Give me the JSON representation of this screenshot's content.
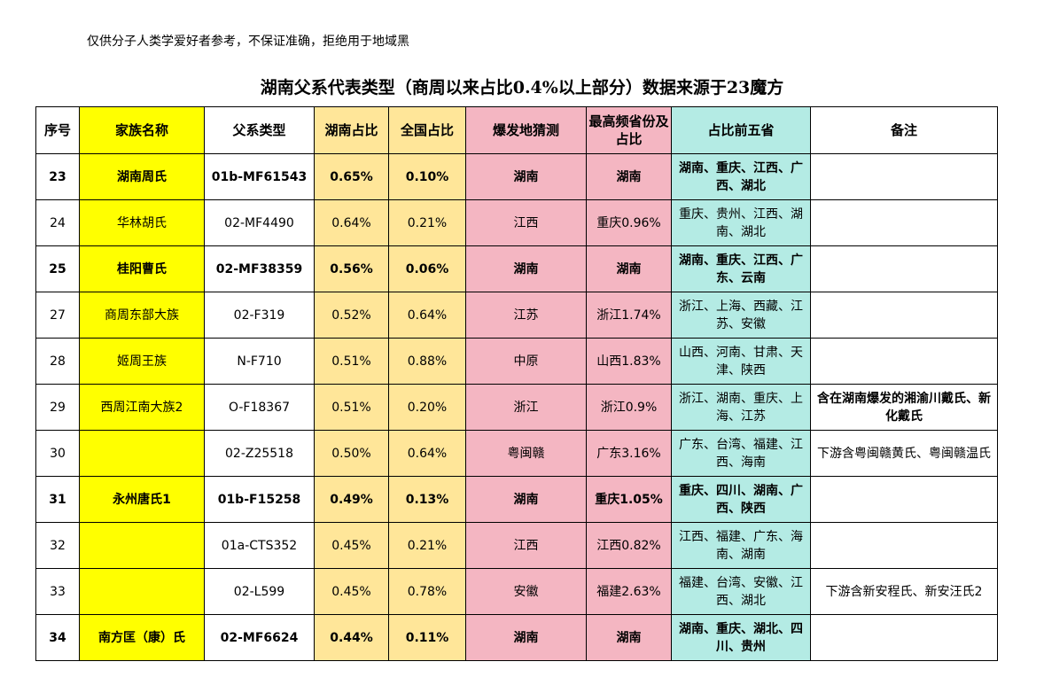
{
  "disclaimer": "仅供分子人类学爱好者参考，不保证准确，拒绝用于地域黑",
  "title": "湖南父系代表类型（商周以来占比0.4%以上部分）数据来源于23魔方",
  "table": {
    "headers": [
      "序号",
      "家族名称",
      "父系类型",
      "湖南占比",
      "全国占比",
      "爆发地猜测",
      "最高频省份及占比",
      "占比前五省",
      "备注"
    ],
    "rows": [
      {
        "no": "23",
        "name": "湖南周氏",
        "type": "01b-MF61543",
        "hunan": "0.65%",
        "national": "0.10%",
        "origin": "湖南",
        "top": "湖南",
        "top5": "湖南、重庆、江西、广西、湖北",
        "note": "",
        "bold": true
      },
      {
        "no": "24",
        "name": "华林胡氏",
        "type": "02-MF4490",
        "hunan": "0.64%",
        "national": "0.21%",
        "origin": "江西",
        "top": "重庆0.96%",
        "top5": "重庆、贵州、江西、湖南、湖北",
        "note": "",
        "bold": false
      },
      {
        "no": "25",
        "name": "桂阳曹氏",
        "type": "02-MF38359",
        "hunan": "0.56%",
        "national": "0.06%",
        "origin": "湖南",
        "top": "湖南",
        "top5": "湖南、重庆、江西、广东、云南",
        "note": "",
        "bold": true
      },
      {
        "no": "27",
        "name": "商周东部大族",
        "type": "02-F319",
        "hunan": "0.52%",
        "national": "0.64%",
        "origin": "江苏",
        "top": "浙江1.74%",
        "top5": "浙江、上海、西藏、江苏、安徽",
        "note": "",
        "bold": false
      },
      {
        "no": "28",
        "name": "姬周王族",
        "type": "N-F710",
        "hunan": "0.51%",
        "national": "0.88%",
        "origin": "中原",
        "top": "山西1.83%",
        "top5": "山西、河南、甘肃、天津、陕西",
        "note": "",
        "bold": false
      },
      {
        "no": "29",
        "name": "西周江南大族2",
        "type": "O-F18367",
        "hunan": "0.51%",
        "national": "0.20%",
        "origin": "浙江",
        "top": "浙江0.9%",
        "top5": "浙江、湖南、重庆、上海、江苏",
        "note": "含在湖南爆发的湘渝川戴氏、新化戴氏",
        "bold": false,
        "note_bold": true
      },
      {
        "no": "30",
        "name": "",
        "type": "02-Z25518",
        "hunan": "0.50%",
        "national": "0.64%",
        "origin": "粤闽赣",
        "top": "广东3.16%",
        "top5": "广东、台湾、福建、江西、海南",
        "note": "下游含粤闽赣黄氏、粤闽赣温氏",
        "bold": false
      },
      {
        "no": "31",
        "name": "永州唐氏1",
        "type": "01b-F15258",
        "hunan": "0.49%",
        "national": "0.13%",
        "origin": "湖南",
        "top": "重庆1.05%",
        "top5": "重庆、四川、湖南、广西、陕西",
        "note": "",
        "bold": true
      },
      {
        "no": "32",
        "name": "",
        "type": "01a-CTS352",
        "hunan": "0.45%",
        "national": "0.21%",
        "origin": "江西",
        "top": "江西0.82%",
        "top5": "江西、福建、广东、海南、湖南",
        "note": "",
        "bold": false
      },
      {
        "no": "33",
        "name": "",
        "type": "02-L599",
        "hunan": "0.45%",
        "national": "0.78%",
        "origin": "安徽",
        "top": "福建2.63%",
        "top5": "福建、台湾、安徽、江西、湖北",
        "note": "下游含新安程氏、新安汪氏2",
        "bold": false
      },
      {
        "no": "34",
        "name": "南方匡（康）氏",
        "type": "02-MF6624",
        "hunan": "0.44%",
        "national": "0.11%",
        "origin": "湖南",
        "top": "湖南",
        "top5": "湖南、重庆、湖北、四川、贵州",
        "note": "",
        "bold": true
      }
    ]
  },
  "colors": {
    "name_col": "#ffff00",
    "pct_cols": "#ffe699",
    "origin_top_cols": "#f4b6c2",
    "top5_col": "#b4ebe4"
  }
}
